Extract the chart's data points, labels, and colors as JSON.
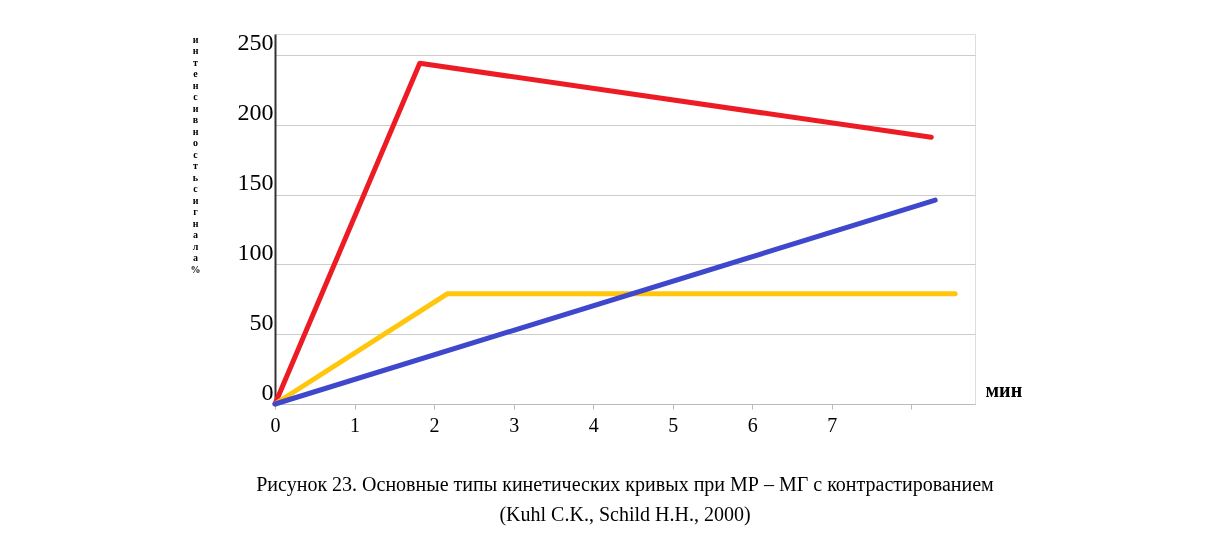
{
  "chart_data": {
    "type": "line",
    "xlabel": "мин",
    "ylabel": "интенсивность сигнала %",
    "xlim": [
      0,
      8.8
    ],
    "xticks": [
      0,
      1,
      2,
      3,
      4,
      5,
      6,
      7,
      {
        "value": 8,
        "label": null
      }
    ],
    "ylim": [
      0,
      265
    ],
    "yticks": [
      0,
      50,
      100,
      150,
      200,
      250
    ],
    "grid": "y",
    "marker": "none",
    "line_style": "solid",
    "series": [
      {
        "color": "#ed1c24",
        "x": [
          0,
          1.82,
          8.25
        ],
        "values": [
          0,
          244,
          191
        ]
      },
      {
        "color": "#ffc60b",
        "x": [
          0,
          2.17,
          8.55
        ],
        "values": [
          0,
          79,
          79
        ]
      },
      {
        "color": "#3f48cc",
        "x": [
          0,
          8.3
        ],
        "values": [
          0,
          146
        ]
      }
    ],
    "annotations": [
      "Рисунок 23.  Основные типы кинетических кривых при МР – МГ  с контрастированием",
      "(Kuhl C.K., Schild H.H., 2000)"
    ]
  }
}
